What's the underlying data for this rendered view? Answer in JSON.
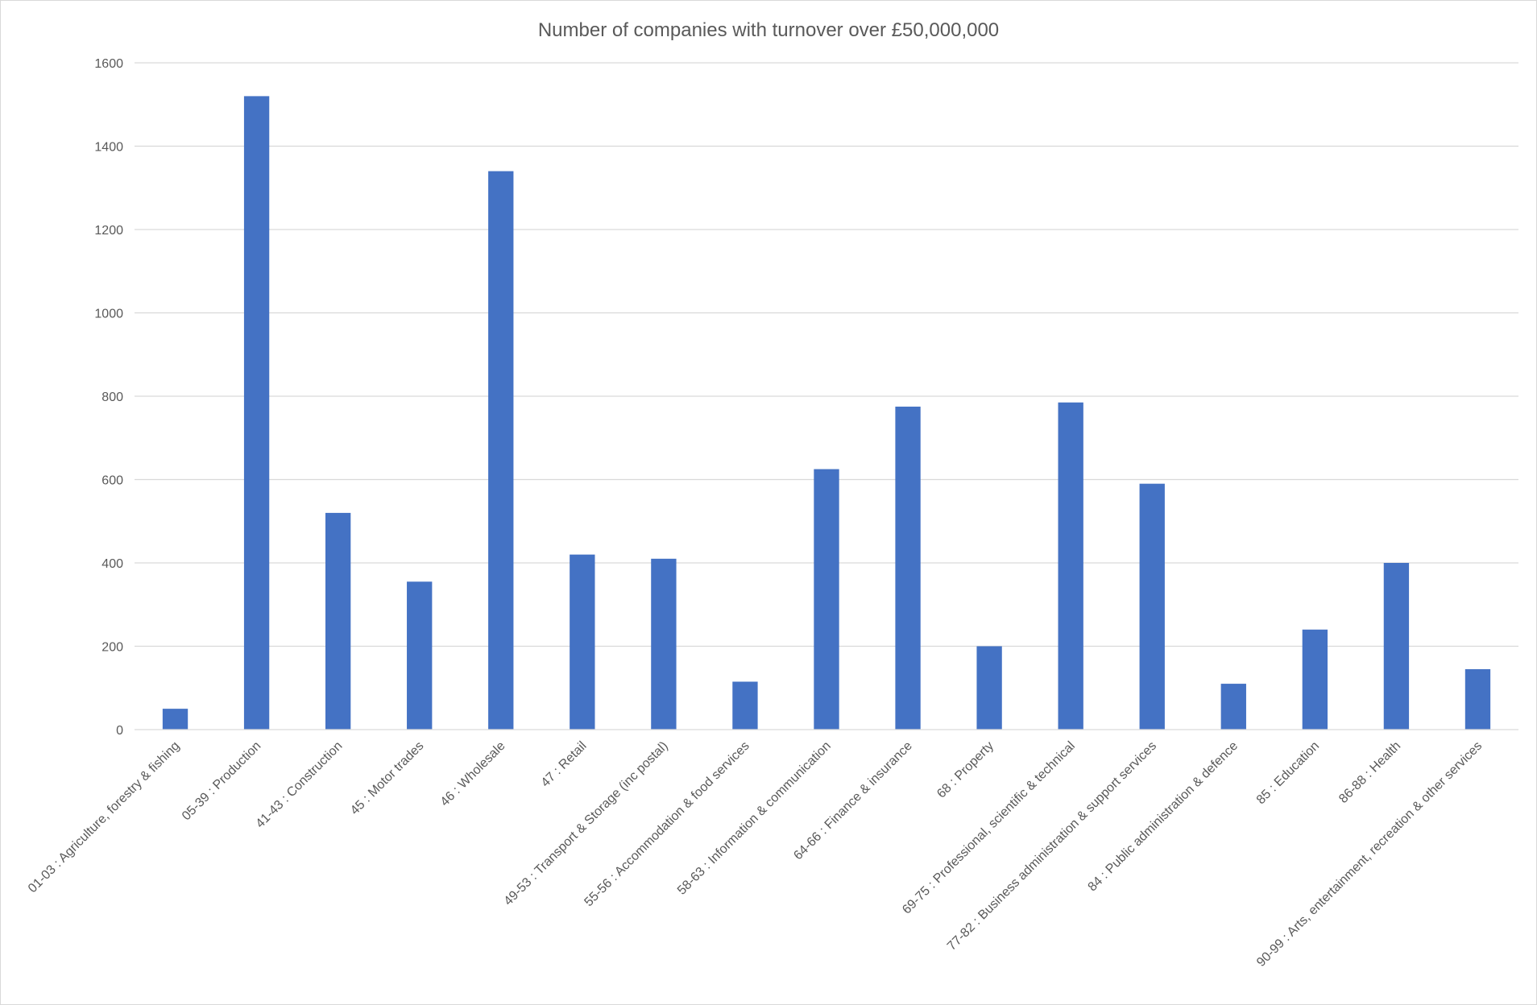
{
  "chart_data": {
    "type": "bar",
    "title": "Number of companies with turnover over £50,000,000",
    "xlabel": "",
    "ylabel": "",
    "ylim": [
      0,
      1600
    ],
    "yticks": [
      0,
      200,
      400,
      600,
      800,
      1000,
      1200,
      1400,
      1600
    ],
    "grid": true,
    "legend": "none",
    "bar_color": "#4472C4",
    "categories": [
      "01-03 : Agriculture, forestry & fishing",
      "05-39 : Production",
      "41-43 : Construction",
      "45 : Motor trades",
      "46 : Wholesale",
      "47 : Retail",
      "49-53 : Transport & Storage (inc postal)",
      "55-56 : Accommodation & food services",
      "58-63 : Information & communication",
      "64-66 : Finance & insurance",
      "68 : Property",
      "69-75 : Professional, scientific & technical",
      "77-82 : Business administration & support services",
      "84 : Public administration & defence",
      "85 : Education",
      "86-88 : Health",
      "90-99 : Arts, entertainment, recreation & other services"
    ],
    "values": [
      50,
      1520,
      520,
      355,
      1340,
      420,
      410,
      115,
      625,
      775,
      200,
      785,
      590,
      110,
      240,
      400,
      145
    ]
  }
}
